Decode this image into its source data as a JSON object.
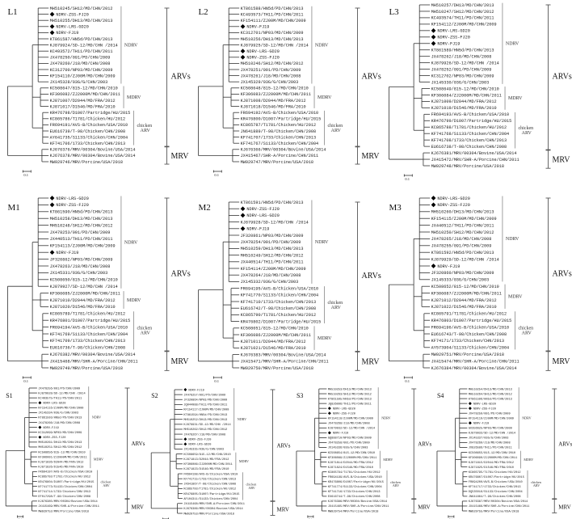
{
  "figure": {
    "clade_labels": {
      "ARVs": "ARVs",
      "MRV": "MRV"
    },
    "scale_bar_label": "0.1",
    "study_strain_marker": "filled-diamond",
    "line_color": "#333333",
    "group_bracket_color": "#888888",
    "panels": [
      {
        "label": "L1",
        "groups": [
          {
            "name": "NDRV",
            "leaves": [
              "MH510245/SH12/MD/CHN/2012",
              "NDRV-ZSS-FJ20",
              "MH510255/DH13/MD/CHN/2013",
              "NDRV-LRS-GD20",
              "NDRV-FJ19",
              "KT861587/HN5d/PD/CHN/2013",
              "KJ879924/SD-12/MD/CHN /2014",
              "KC493572/TH11/PD/CHN/2011",
              "JX478250/091/PD/CHN/2009",
              "JX478260/J18/MD/CHN/2008",
              "KC312700/NP03/MD/CHN/2009",
              "KF154110/ZJ00M/MD/CHN/2009",
              "JX145328/03G/G/CHN/2003"
            ]
          },
          {
            "name": "MDRV",
            "leaves": [
              "KC508647/815-12/MD/CHN/2010",
              "KF306082/ZJ2000M/MD/CHN/2011",
              "KJ871007/D2044/MD/FRA/2012",
              "KJ871017/D1546/MD/FRA/2010"
            ]
          },
          {
            "name": "chicken ARV",
            "leaves": [
              "KR476798/D1007/Partridge/HU/2015",
              "KC865786/T1781/Chicken/HU/2012",
              "FR694191/AVS-B/Chicken/USA/2010",
              "EU616739/T-98/Chicken/CHN/2008",
              "AY641735/S1133/Chicken/CHN/2004",
              "KF741706/1733/Chicken/CHN/2013"
            ]
          },
          {
            "name": "MRV",
            "leaves": [
              "KJ676376/MRV/00304/Bovine/USA/2014",
              "KJ676378/MRV/00304/Bovine/USA/2014",
              "MW929746/MRV/Porcine/USA/2018"
            ]
          }
        ]
      },
      {
        "label": "L2",
        "groups": [
          {
            "name": "NDRV",
            "leaves": [
              "KT861588/HN5d/PD/CHN/2013",
              "KC493573/TH11/PD/CHN/2011",
              "KF154111/ZJ00M/MD/CHN/2009",
              "NDRV-FJ19",
              "KC312701/NP03/MD/CHN/2009",
              "MH510256/DH13/MD/CHN/2013",
              "KJ879925/SD-12/MD/CHN /2014",
              "NDRV-LRS-GD20",
              "NDRV-ZSS-FJ20",
              "MH510246/SH12/MD/CHN/2012",
              "JX478251/091/PD/CHN/2009",
              "JX478261/J18/MD/CHN/2008",
              "JX145329/03G/G/CHN/2003"
            ]
          },
          {
            "name": "MDRV",
            "leaves": [
              "KC508648/815-12/MD/CHN/2010",
              "KF306083/ZJ2000M/MD/CHN/2011",
              "KJ871008/D2044/MD/FRA/2012",
              "KJ871018/D1546/MD/FRA/2010"
            ]
          },
          {
            "name": "chicken ARV",
            "leaves": [
              "FR694192/AVS-B/Chicken/USA/2010",
              "KR476800/D1007/Partridge/HU/2015",
              "KC865787/T1781/Chicken/HU/2012",
              "JN641889/T-98/Chicken/CHN/2008",
              "KF741707/1733/Chicken/CHN/2013",
              "KF741767/S1133/Chicken/CHN/2004"
            ]
          },
          {
            "name": "MRV",
            "leaves": [
              "KJ676366/MRV/00304/Bovine/USA/2014",
              "JX415467/SHR-A/Porcine/CHN/2011",
              "MW929747/MRV/Porcine/USA/2018"
            ]
          }
        ]
      },
      {
        "label": "L3",
        "groups": [
          {
            "name": "NDRV",
            "leaves": [
              "MH510257/DH13/MD/CHN/2013",
              "MH510247/SH12/MD/CHN/2012",
              "KC493574/TH11/PD/CHN/2011",
              "KF154112/ZJ00M/MD/CHN/2009",
              "NDRV-LRS-GD20",
              "NDRV-ZSS-FJ20",
              "NDRV-FJ19",
              "KT861589/HN5d/PD/CHN/2013",
              "JX478262/J18/MD/CHN/2008",
              "KJ879926/SD-12/MD/CHN /2014",
              "JX478252/091/PD/CHN/2009",
              "KC312702/NP03/MD/CHN/2009",
              "JX145330/03G/G/CHN/2003"
            ]
          },
          {
            "name": "MDRV",
            "leaves": [
              "KC508649/815-12/MD/CHN/2010",
              "KF306084/ZJ2000M/MD/CHN/2011",
              "KJ871009/D2044/MD/FRA/2012",
              "KJ871019/D1546/MD/FRA/2010"
            ]
          },
          {
            "name": "chicken ARV",
            "leaves": [
              "FR694193/AVS-B/Chicken/USA/2010",
              "KR476799/D1007/Partridge/HU/2015",
              "KC865788/T1781/Chicken/HU/2012",
              "KF741768/S1133/Chicken/CHN/2004",
              "KF741708/1733/Chicken/CHN/2013",
              "EU616738/T-98/Chicken/CHN/2008"
            ]
          },
          {
            "name": "MRV",
            "leaves": [
              "KJ676381/MRV/00304/Bovine/USA/2014",
              "JX415472/MRV/SHR-A/Porcine/CHN/2011",
              "MW929748/MRV/Porcine/USA/2018"
            ]
          }
        ]
      },
      {
        "label": "M1",
        "groups": [
          {
            "name": "NDRV",
            "leaves": [
              "NDRV-LRS-GD20",
              "NDRV-ZSS-FJ20",
              "KT861590/HN5d/PD/CHN/2013",
              "MH510258/DH13/MD/CHN/2013",
              "MH510248/SH12/MD/CHN/2012",
              "JX478253/091/PD/CHN/2009",
              "JX440513/TH11/PD/CHN/2011",
              "KF154113/ZJ00M/MD/CHN/2009",
              "NDRV-FJ19",
              "JF320862/NP03/MD/CHN/2009",
              "JX478263/J18/MD/CHN/2008",
              "JX145331/03G/G/CHN/2003",
              "KC508650/815-12/MD/CHN/2010",
              "KJ879927/SD-12/MD/CHN /2014"
            ]
          },
          {
            "name": "MDRV",
            "leaves": [
              "KF306085/ZJ2000M/MD/CHN/2011",
              "KJ871010/D2044/MD/FRA/2012",
              "KJ871020/D1546/MD/FRA/2010"
            ]
          },
          {
            "name": "chicken ARV",
            "leaves": [
              "KC865789/T1781/Chicken/HU/2012",
              "KR476801/D1007/Partridge/HU/2015",
              "FR694194/AVS-B/Chicken/USA/2010",
              "KF741769/S1133/Chicken/CHN/2004",
              "KF741709/1733/Chicken/CHN/2013",
              "EU616736/T-98/Chicken/CHN/2008"
            ]
          },
          {
            "name": "MRV",
            "leaves": [
              "KJ676382/MRV/00304/Bovine/USA/2014",
              "JX415468/MRV/SHR-A/Porcine/CHN/2011",
              "MW929749/MRV/Porcine/USA/2018"
            ]
          }
        ]
      },
      {
        "label": "M2",
        "groups": [
          {
            "name": "NDRV",
            "leaves": [
              "KT861591/HN5d/PD/CHN/2013",
              "NDRV-ZSS-FJ20",
              "NDRV-LRS-GD20",
              "KJ879928/SD-12/MD/CHN /2014",
              "NDRV-FJ19",
              "JF320861/NP03/MD/CHN/2009",
              "JX478254/091/PD/CHN/2009",
              "MH510259/DH13/MD/CHN/2013",
              "MH510249/SH12/MD/CHN/2012",
              "JX440514/TH11/PD/CHN/2011",
              "KF154114/ZJ00M/MD/CHN/2009",
              "JX478264/J18/MD/CHN/2008",
              "JX145332/03G/G/CHN/2003"
            ]
          },
          {
            "name": "chicken ARV",
            "leaves": [
              "FR694195/AVS-B/Chicken/USA/2010",
              "KF741770/S1133/Chicken/CHN/2004",
              "KF741710/1733/Chicken/CHN/2013",
              "EU616742/T-98/Chicken/CHN/2008",
              "KC865790/T1781/Chicken/HU/2012",
              "KR476802/D1007/Partridge/HU/2015"
            ]
          },
          {
            "name": "MDRV",
            "leaves": [
              "KC508651/815-12/MD/CHN/2010",
              "KF306086/ZJ2000M/MD/CHN/2011",
              "KJ871011/D2044/MD/FRA/2012",
              "KJ871021/D1546/MD/FRA/2010"
            ]
          },
          {
            "name": "MRV",
            "leaves": [
              "KJ676383/MRV/00304/Bovine/USA/2014",
              "JX415471/MRV/SHR-A/Porcine/CHN/2011",
              "MW929750/MRV/Porcine/USA/2018"
            ]
          }
        ]
      },
      {
        "label": "M3",
        "groups": [
          {
            "name": "NDRV",
            "leaves": [
              "NDRV-LRS-GD20",
              "NDRV-ZSS-FJ20",
              "MH510260/DH13/MD/CHN/2013",
              "KF154115/ZJ00M/MD/CHN/2009",
              "JX440512/TH11/PD/CHN/2011",
              "MH510250/SH12/MD/CHN/2012",
              "JX478265/J18/MD/CHN/2008",
              "JX478255/091/PD/CHN/2009",
              "KT861592/HN5d/PD/CHN/2013",
              "KJ879929/SD-12/MD/CHN /2014",
              "NDRV-FJ19",
              "JF320860/NP03/MD/CHN/2009",
              "JX145333/03G/G/CHN/2003"
            ]
          },
          {
            "name": "MDRV",
            "leaves": [
              "KC508652/815-12/MD/CHN/2010",
              "KF306087/ZJ2000M/MD/CHN/2011",
              "KJ871012/D2044/MD/FRA/2012",
              "KJ871022/D1546/MD/FRA/2010"
            ]
          },
          {
            "name": "chicken ARV",
            "leaves": [
              "KC865791/T1781/Chicken/HU/2012",
              "KR476803/D1007/Partridge/HU/2015",
              "FR694196/AVS-B/Chicken/USA/2010",
              "EU616743/T-98/Chicken/CHN/2008",
              "KF74171/1733/Chicken/CHN/2013",
              "AY573904/S1133/Chicken/CHN/2004"
            ]
          },
          {
            "name": "MRV",
            "leaves": [
              "MW929751/MRV/Porcine/USA/2018",
              "JX415474/MRV/SHR-A/Porcine/CHN/2011",
              "KJ676384/MRV/00304/Bovine/USA/2014"
            ]
          }
        ]
      },
      {
        "label": "S1",
        "groups": [
          {
            "name": "NDRV",
            "leaves": [
              "JX478256/091/PD/CHN/2009",
              "KJ879928/SD-12/MD/CHN /2014",
              "KC493575/TH11/PD/CHN/2011",
              "NDRV-LRS-GD20",
              "KF154116/ZJ00M/MD/CHN/2009",
              "JX145334/03G/G/CHN/2003",
              "KT861593/HN5d/PD/CHN/2013",
              "JX478266/J18/MD/CHN/2008",
              "NDRV-FJ19",
              "KC312699/NP03/MD/CHN/2009",
              "NDRV-ZSS-FJ20",
              "MH510261/DH13/MD/CHN/2013",
              "MH510251/SH12/MD/CHN/2012"
            ]
          },
          {
            "name": "MDRV",
            "leaves": [
              "KC508656/815-12/MD/CHN/2010",
              "KF306091/ZJ2000M/MD/CHN/2011",
              "KJ871836/D2044/MD/FRA/2012",
              "KJ871826/D1546/MD/FRA/2010"
            ]
          },
          {
            "name": "chicken ARV",
            "leaves": [
              "FR694197/AVS-B/Chicken/USA/2010",
              "KC865792/T1781/Chicken/HU/2012",
              "KR476804/D1007/Partridge/HU/2015",
              "KF741773/S1133/Chicken/CHN/2004",
              "KF741714/1733/Chicken/CHN/2013",
              "EF017298/T-98/Chicken/CHN/2008"
            ]
          },
          {
            "name": "MRV",
            "leaves": [
              "KJ676385/MRV/00304/Bovine/USA/2014",
              "JX415469/MRV/SHR-A/Porcine/CHN/2011",
              "MW929752/MRV/Porcine/USA/2018"
            ]
          }
        ]
      },
      {
        "label": "S2",
        "groups": [
          {
            "name": "NDRV",
            "leaves": [
              "NDRV-FJ19",
              "JX478257/091/PD/CHN/2009",
              "JF320864/NP03/MD/CHN/2009",
              "JQ044088/TH11/PD/CHN/2011",
              "KF154117/ZJ00M/MD/CHN/2009",
              "KT861594/HN5d/PD/CHN/2013",
              "MH510252/DH13/MD/CHN/2013",
              "KJ879931/SD-12/MD/CHN /2014",
              "MH510262/SH12/MD/CHN/2012",
              "JX478267/J18/MD/CHN/2008",
              "NDRV-ZSS-FJ20",
              "NDRV-LRS-GD20",
              "JX145335/03G/G/CHN/2003"
            ]
          },
          {
            "name": "MDRV",
            "leaves": [
              "KC508659/815-12/MD/CHN/2010",
              "KJ871813/D2044/MD/FRA/2012",
              "KF306086/ZJ2000M/MD/CHN/2011",
              "KJ871823/D1546/MD/FRA/2010"
            ]
          },
          {
            "name": "chicken ARV",
            "leaves": [
              "FR694198/AVS-B/Chicken/USA/2010",
              "KF741715/1733/Chicken/CHN/2013",
              "JX641867/T-98/Chicken/CHN/2008",
              "KC865793/T1781/Chicken/HU/2012",
              "KR476805/D1007/Partridge/HU/2015",
              "AF104311/S1133/Chicken/CHN/2004"
            ]
          },
          {
            "name": "MRV",
            "leaves": [
              "JX415468/MRV/SHR-A/Porcine/CHN/2011",
              "KJ676386/MRV/00304/Bovine/USA/2014",
              "MW929753/MRV/Porcine/USA/2018"
            ]
          }
        ]
      },
      {
        "label": "S3",
        "groups": [
          {
            "name": "NDRV",
            "leaves": [
              "MH510253/DH13/MD/CHN/2013",
              "MH510263/SH12/MD/CHN/2012",
              "KT861595/HN5d/PD/CHN/2013",
              "JQ826096/TH11/PD/CHN/2011",
              "NDRV-LRS-GD20",
              "NDRV-ZSS-FJ20",
              "KF154118/ZJ00M/MD/CHN/2009",
              "JX478268/J18/MD/CHN/2008",
              "KJ879932/SD-12/MD/CHN /2014",
              "NDRV-FJ19",
              "GQ888710/NP03/MD/CHN/2009",
              "JX478258/091/PD/CHN/2009",
              "JX145336/03G/G/CHN/2003"
            ]
          },
          {
            "name": "MDRV",
            "leaves": [
              "KC508654/815-12/MD/CHN/2010",
              "KF306089/ZJ2000M/MD/CHN/2011",
              "KJ871814/D2044/MD/FRA/2012",
              "KJ871824/D1546/MD/FRA/2010"
            ]
          },
          {
            "name": "chicken ARV",
            "leaves": [
              "KC865794/T1781/Chicken/HU/2012",
              "FR694199/AVS-B/Chicken/USA/2010",
              "KR476806/D1007/Partridge/HU/2015",
              "KF741774/S1133/Chicken/CHN/2004",
              "KF741716/1733/Chicken/CHN/2013",
              "EU616744/T-98/Chicken/CHN/2008"
            ]
          },
          {
            "name": "MRV",
            "leaves": [
              "KJ676386/MRV/00304/Bovine/USA/2014",
              "JX415465/MRV/SHR-A/Porcine/CHN/2011",
              "MW929754/MRV/Porcine/USA/2018"
            ]
          }
        ]
      },
      {
        "label": "S4",
        "groups": [
          {
            "name": "NDRV",
            "leaves": [
              "MH510254/DH13/MD/CHN/2013",
              "MH510264/SH12/MD/CHN/2012",
              "KT861596/HN5d/PD/CHN/2013",
              "NDRV-LRS-GD20",
              "NDRV-ZSS-FJ20",
              "JX478259/091/PD/CHN/2009",
              "KF154119/ZJ00M/MD/CHN/2009",
              "NDRV-FJ19",
              "GU356625/NP03/MD/CHN/2009",
              "KJ879933/SD-12/MD/CHN /2014",
              "JX145337/03G/G/CHN/2003",
              "JX478269/J18/MD/CHN/2008",
              "JX826586/TH11/PD/CHN/2011"
            ]
          },
          {
            "name": "MDRV",
            "leaves": [
              "KC508655/815-12/MD/CHN/2010",
              "KF306090/ZJ2000M/MD/CHN/2011",
              "KJ871815/D2044/MD/FRA/2012",
              "KJ871825/D1546/MD/FRA/2010"
            ]
          },
          {
            "name": "chicken ARV",
            "leaves": [
              "KC865795/T1781/Chicken/HU/2012",
              "KR476807/D1007/Partridge/HU/2015",
              "FR694200/AVS-B/Chicken/USA/2010",
              "KF741717/1733/Chicken/CHN/2013",
              "DQ535016/S1133/Chicken/CHN/2004",
              "JN641864/T-98/Chicken/CHN/2008"
            ]
          },
          {
            "name": "MRV",
            "leaves": [
              "KJ676387/MRV/00304/Bovine/USA/2014",
              "JX415466/MRV/SHR-A/Porcine/CHN/2011",
              "MW929755/MRV/Porcine/USA/2018"
            ]
          }
        ]
      }
    ]
  }
}
